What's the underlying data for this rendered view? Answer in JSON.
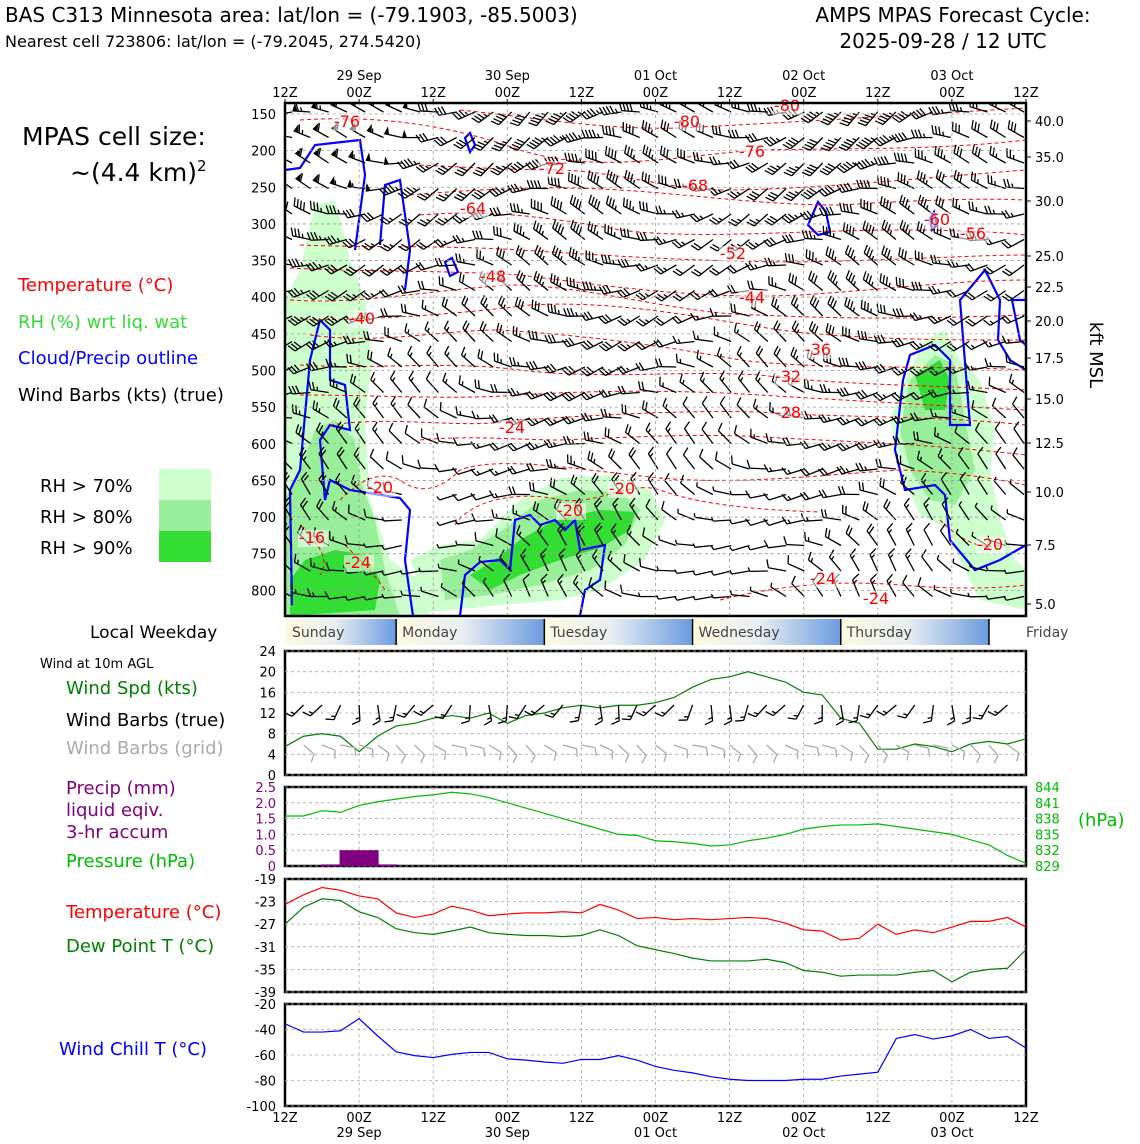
{
  "header": {
    "left_title": "BAS C313 Minnesota area: lat/lon = (-79.1903, -85.5003)",
    "left_subtitle": "Nearest cell 723806: lat/lon = (-79.2045, 274.5420)",
    "right_title_1": "AMPS MPAS Forecast Cycle:",
    "right_title_2": "2025-09-28 / 12 UTC"
  },
  "cell_size": {
    "line1": "MPAS cell size:",
    "line2": "~(4.4 km)",
    "exponent": "2"
  },
  "legend": {
    "temperature": "Temperature (°C)",
    "rh": "RH (%) wrt liq. wat",
    "cloud": "Cloud/Precip outline",
    "wind": "Wind Barbs (kts) (true)",
    "rh70": "RH > 70%",
    "rh80": "RH > 80%",
    "rh90": "RH > 90%",
    "colors": {
      "temp": "#ff0000",
      "rh": "#33dd33",
      "cloud": "#0000ff",
      "rh70": "#ccffcc",
      "rh80": "#99ee99",
      "rh90": "#33dd33"
    }
  },
  "time_axis": {
    "ticks": [
      "12Z",
      "00Z",
      "12Z",
      "00Z",
      "12Z",
      "00Z",
      "12Z",
      "00Z",
      "12Z",
      "00Z",
      "12Z"
    ],
    "dates": [
      "29 Sep",
      "30 Sep",
      "01 Oct",
      "02 Oct",
      "03 Oct"
    ]
  },
  "cross_section": {
    "y_ticks": [
      "150",
      "200",
      "250",
      "300",
      "350",
      "400",
      "450",
      "500",
      "550",
      "600",
      "650",
      "700",
      "750",
      "800"
    ],
    "right_ticks": [
      "40.0",
      "35.0",
      "30.0",
      "25.0",
      "22.5",
      "20.0",
      "17.5",
      "15.0",
      "12.5",
      "10.0",
      "7.5",
      "5.0"
    ],
    "right_axis_label": "kft MSL",
    "temp_labels": [
      "-76",
      "-80",
      "-80",
      "-76",
      "-72",
      "-68",
      "-64",
      "-60",
      "-56",
      "-52",
      "-48",
      "-44",
      "-40",
      "-36",
      "-32",
      "-28",
      "-24",
      "-20",
      "-20",
      "-20",
      "-20",
      "-16",
      "-24",
      "-24",
      "-24"
    ]
  },
  "weekday": {
    "label": "Local Weekday",
    "days": [
      "Sunday",
      "Monday",
      "Tuesday",
      "Wednesday",
      "Thursday",
      "Friday"
    ]
  },
  "wind_panel": {
    "caption": "Wind at 10m AGL",
    "label_speed": "Wind Spd (kts)",
    "label_barbs": "Wind Barbs (true)",
    "label_grid": "Wind Barbs (grid)",
    "y_ticks": [
      "0",
      "4",
      "8",
      "12",
      "16",
      "20",
      "24"
    ]
  },
  "precip_panel": {
    "label_precip_1": "Precip (mm)",
    "label_precip_2": "liquid eqiv.",
    "label_precip_3": "3-hr accum",
    "label_pressure": "Pressure (hPa)",
    "left_ticks": [
      "0",
      "0.5",
      "1.0",
      "1.5",
      "2.0",
      "2.5"
    ],
    "right_ticks": [
      "829",
      "832",
      "835",
      "838",
      "841",
      "844"
    ],
    "right_unit": "(hPa)"
  },
  "temp_panel": {
    "label_temp": "Temperature (°C)",
    "label_dew": "Dew Point T (°C)",
    "y_ticks": [
      "-19",
      "-23",
      "-27",
      "-31",
      "-35",
      "-39"
    ]
  },
  "chill_panel": {
    "label": "Wind Chill T (°C)",
    "y_ticks": [
      "-20",
      "-40",
      "-60",
      "-80",
      "-100"
    ]
  },
  "chart_data": [
    {
      "type": "line",
      "name": "10m wind",
      "x_hours": [
        0,
        3,
        6,
        9,
        12,
        15,
        18,
        21,
        24,
        27,
        30,
        33,
        36,
        39,
        42,
        45,
        48,
        51,
        54,
        57,
        60,
        63,
        66,
        69,
        72,
        75,
        78,
        81,
        84,
        87,
        90,
        93,
        96,
        99,
        102,
        105,
        108,
        111,
        114,
        117,
        120
      ],
      "series": [
        {
          "name": "Wind Spd (kts)",
          "values": [
            5.5,
            7.5,
            8,
            7.5,
            4.5,
            7.5,
            9.5,
            10,
            11,
            11.5,
            11,
            12,
            10,
            11.5,
            12,
            13,
            13.5,
            13,
            13.5,
            13.5,
            14,
            15,
            17,
            18.5,
            19,
            20,
            19,
            18,
            16,
            15.5,
            11,
            10,
            5,
            5,
            6,
            5.5,
            4.5,
            6,
            6.5,
            6,
            7
          ]
        }
      ],
      "ylim": [
        0,
        24
      ]
    },
    {
      "type": "bar",
      "name": "Precip / Pressure",
      "x_hours": [
        0,
        3,
        6,
        9,
        12,
        15,
        18,
        21,
        24,
        27,
        30,
        33,
        36,
        39,
        42,
        45,
        48,
        51,
        54,
        57,
        60,
        63,
        66,
        69,
        72,
        75,
        78,
        81,
        84,
        87,
        90,
        93,
        96,
        99,
        102,
        105,
        108,
        111,
        114,
        117,
        120
      ],
      "series": [
        {
          "name": "Pressure (hPa)",
          "values": [
            838.5,
            838.5,
            839.5,
            839.2,
            840.5,
            841.2,
            841.7,
            842.2,
            842.5,
            843,
            842.7,
            842,
            841,
            840,
            839,
            838,
            837,
            836,
            835,
            834.8,
            833.8,
            833.6,
            833.3,
            832.8,
            833,
            833.8,
            834.3,
            835,
            836,
            836.5,
            836.8,
            836.8,
            837,
            836.5,
            836,
            835.5,
            835,
            834,
            833,
            831,
            829.5
          ]
        },
        {
          "name": "Precip (mm)",
          "values": [
            0,
            0,
            0.05,
            0.5,
            0.5,
            0.05,
            0,
            0,
            0,
            0,
            0,
            0,
            0,
            0,
            0,
            0,
            0,
            0,
            0,
            0,
            0,
            0,
            0,
            0,
            0,
            0,
            0,
            0,
            0,
            0,
            0,
            0,
            0,
            0,
            0,
            0,
            0,
            0,
            0,
            0,
            0
          ]
        }
      ],
      "ylim_precip": [
        0,
        2.5
      ],
      "ylim_pressure": [
        829,
        844
      ]
    },
    {
      "type": "line",
      "name": "Temperature / Dew point",
      "x_hours": [
        0,
        3,
        6,
        9,
        12,
        15,
        18,
        21,
        24,
        27,
        30,
        33,
        36,
        39,
        42,
        45,
        48,
        51,
        54,
        57,
        60,
        63,
        66,
        69,
        72,
        75,
        78,
        81,
        84,
        87,
        90,
        93,
        96,
        99,
        102,
        105,
        108,
        111,
        114,
        117,
        120
      ],
      "series": [
        {
          "name": "Temperature (°C)",
          "values": [
            -23.5,
            -21.8,
            -20.5,
            -21,
            -22,
            -22.5,
            -25,
            -25.8,
            -25.2,
            -23.8,
            -24.5,
            -25.5,
            -25.2,
            -25,
            -25,
            -24.8,
            -25,
            -23.5,
            -24.5,
            -26,
            -25.8,
            -26.2,
            -26,
            -26.2,
            -26,
            -25.8,
            -26,
            -26.8,
            -28,
            -28.2,
            -29.8,
            -29.5,
            -27,
            -28.8,
            -28,
            -28.5,
            -27.5,
            -26.5,
            -26.5,
            -25.8,
            -27.5
          ]
        },
        {
          "name": "Dew Point T (°C)",
          "values": [
            -27,
            -24,
            -22.5,
            -22.8,
            -24.8,
            -25.8,
            -27.8,
            -28.5,
            -28.8,
            -28.2,
            -27.5,
            -28.5,
            -28.8,
            -29,
            -29,
            -29.2,
            -29,
            -28,
            -29,
            -30.8,
            -31.5,
            -32.2,
            -33,
            -33.5,
            -33.5,
            -33.5,
            -33.2,
            -33.8,
            -35.2,
            -35.5,
            -36.2,
            -36,
            -36,
            -36,
            -35.5,
            -35.2,
            -37.2,
            -35.5,
            -35,
            -34.8,
            -31.5
          ]
        }
      ],
      "ylim": [
        -39,
        -19
      ]
    },
    {
      "type": "line",
      "name": "Wind chill",
      "x_hours": [
        0,
        3,
        6,
        9,
        12,
        15,
        18,
        21,
        24,
        27,
        30,
        33,
        36,
        39,
        42,
        45,
        48,
        51,
        54,
        57,
        60,
        63,
        66,
        69,
        72,
        75,
        78,
        81,
        84,
        87,
        90,
        93,
        96,
        99,
        102,
        105,
        108,
        111,
        114,
        117,
        120
      ],
      "series": [
        {
          "name": "Wind Chill T (°C)",
          "values": [
            -35.5,
            -42,
            -42,
            -41,
            -31.5,
            -45,
            -57.5,
            -60.5,
            -62,
            -59.5,
            -58,
            -58,
            -63,
            -64,
            -65.5,
            -66.5,
            -63.5,
            -63.5,
            -60.5,
            -64,
            -69,
            -72,
            -74,
            -77,
            -79,
            -80,
            -80,
            -80,
            -79,
            -79,
            -76.5,
            -75,
            -73.5,
            -47,
            -44,
            -47.5,
            -45,
            -40,
            -47,
            -45.5,
            -54.5
          ]
        }
      ],
      "ylim": [
        -100,
        -20
      ]
    }
  ]
}
